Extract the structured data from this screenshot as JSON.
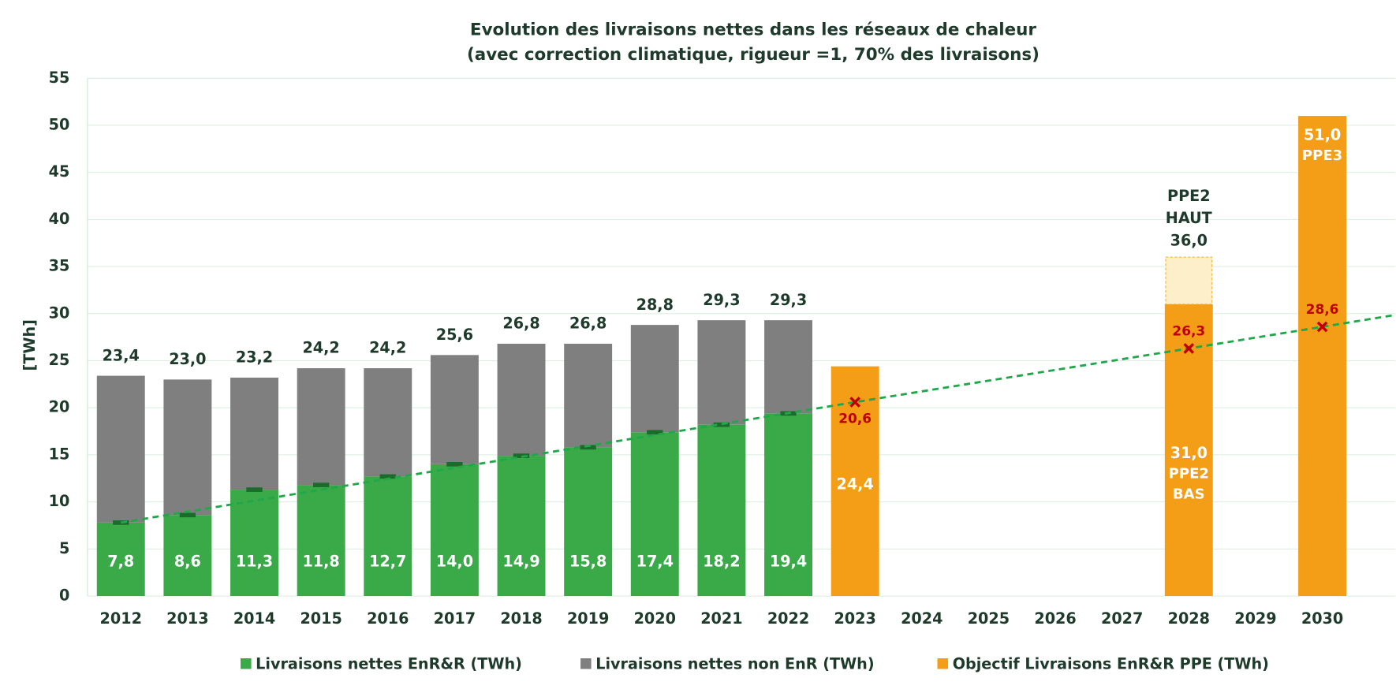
{
  "chart_data": {
    "type": "bar",
    "stacked": true,
    "title": [
      "Evolution des livraisons nettes dans les réseaux de chaleur",
      "(avec correction climatique, rigueur =1, 70% des livraisons)"
    ],
    "y_label": "[TWh]",
    "categories": [
      "2012",
      "2013",
      "2014",
      "2015",
      "2016",
      "2017",
      "2018",
      "2019",
      "2020",
      "2021",
      "2022",
      "2023",
      "2024",
      "2025",
      "2026",
      "2027",
      "2028",
      "2029",
      "2030"
    ],
    "ylim": [
      0,
      55
    ],
    "yticks": [
      0,
      5,
      10,
      15,
      20,
      25,
      30,
      35,
      40,
      45,
      50,
      55
    ],
    "grid": true,
    "series": [
      {
        "name": "Livraisons nettes EnR&R (TWh)",
        "color": "#3aa948",
        "values": [
          7.8,
          8.6,
          11.3,
          11.8,
          12.7,
          14.0,
          14.9,
          15.8,
          17.4,
          18.2,
          19.4,
          null,
          null,
          null,
          null,
          null,
          null,
          null,
          null
        ],
        "value_labels": [
          "7,8",
          "8,6",
          "11,3",
          "11,8",
          "12,7",
          "14,0",
          "14,9",
          "15,8",
          "17,4",
          "18,2",
          "19,4",
          null,
          null,
          null,
          null,
          null,
          null,
          null,
          null
        ]
      },
      {
        "name": "Livraisons nettes non EnR (TWh)",
        "color": "#7f7f7f",
        "values": [
          15.6,
          14.4,
          11.9,
          12.4,
          11.5,
          11.6,
          11.9,
          11.0,
          11.4,
          11.1,
          9.9,
          null,
          null,
          null,
          null,
          null,
          null,
          null,
          null
        ]
      },
      {
        "name": "Objectif Livraisons EnR&R PPE (TWh)",
        "color": "#f49d16",
        "values": [
          null,
          null,
          null,
          null,
          null,
          null,
          null,
          null,
          null,
          null,
          null,
          24.4,
          null,
          null,
          null,
          null,
          31.0,
          null,
          51.0
        ],
        "value_labels": [
          null,
          null,
          null,
          null,
          null,
          null,
          null,
          null,
          null,
          null,
          null,
          "24,4",
          null,
          null,
          null,
          null,
          "31,0",
          null,
          "51,0"
        ],
        "notes": [
          null,
          null,
          null,
          null,
          null,
          null,
          null,
          null,
          null,
          null,
          null,
          null,
          null,
          null,
          null,
          null,
          [
            "PPE2",
            "BAS"
          ],
          null,
          [
            "PPE3"
          ]
        ]
      }
    ],
    "totals": {
      "values": [
        23.4,
        23.0,
        23.2,
        24.2,
        24.2,
        25.6,
        26.8,
        26.8,
        28.8,
        29.3,
        29.3
      ],
      "value_labels": [
        "23,4",
        "23,0",
        "23,2",
        "24,2",
        "24,2",
        "25,6",
        "26,8",
        "26,8",
        "28,8",
        "29,3",
        "29,3"
      ]
    },
    "haut": {
      "color": "#fdefc9",
      "values": [
        null,
        null,
        null,
        null,
        null,
        null,
        null,
        null,
        null,
        null,
        null,
        null,
        null,
        null,
        null,
        null,
        5.0,
        null,
        null
      ],
      "total": 36.0,
      "total_label": "36,0",
      "label_lines": [
        "PPE2",
        "HAUT"
      ]
    },
    "trend": {
      "color": "#1fa84a",
      "marker_color": "#c00000",
      "categories": [
        "2012",
        "2023",
        "2028",
        "2030"
      ],
      "values": [
        7.8,
        20.6,
        26.3,
        28.6
      ],
      "value_labels": [
        null,
        "20,6",
        "26,3",
        "28,6"
      ]
    }
  }
}
